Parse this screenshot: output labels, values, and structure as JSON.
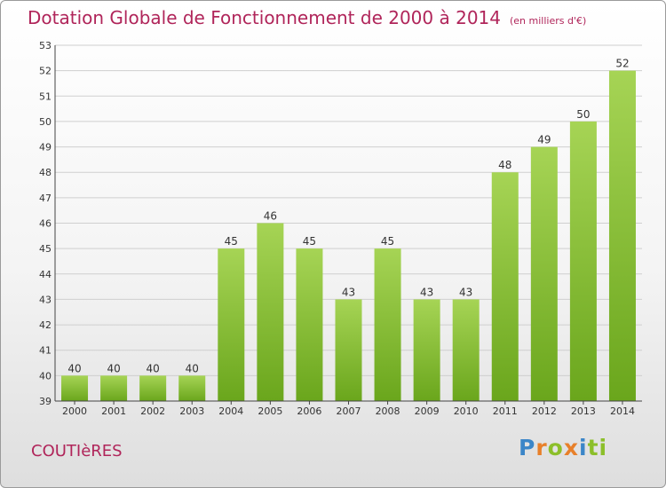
{
  "chart_data": {
    "type": "bar",
    "title": "Dotation Globale de Fonctionnement de 2000 à 2014",
    "unit_label": "(en milliers d'€)",
    "categories": [
      "2000",
      "2001",
      "2002",
      "2003",
      "2004",
      "2005",
      "2006",
      "2007",
      "2008",
      "2009",
      "2010",
      "2011",
      "2012",
      "2013",
      "2014"
    ],
    "values": [
      40,
      40,
      40,
      40,
      45,
      46,
      45,
      43,
      45,
      43,
      43,
      48,
      49,
      50,
      52
    ],
    "ylim": [
      39,
      53
    ],
    "yticks": [
      39,
      40,
      41,
      42,
      43,
      44,
      45,
      46,
      47,
      48,
      49,
      50,
      51,
      52,
      53
    ],
    "grid": true,
    "bar_color": "#7cb62a",
    "bar_color_light": "#a6d455"
  },
  "commune": "COUTIèRES",
  "logo": {
    "letters": [
      "P",
      "r",
      "o",
      "x",
      "i",
      "ti"
    ]
  },
  "colors": {
    "title": "#b0255a",
    "grid": "#cfcfcf"
  }
}
